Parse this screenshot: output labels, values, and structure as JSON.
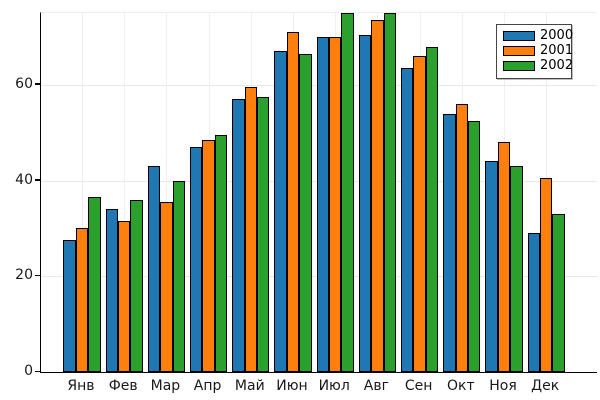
{
  "figure": {
    "background": "#ffffff",
    "axis_color": "#000000",
    "tick_label_color": "#1a1a1a"
  },
  "chart_data": {
    "type": "bar",
    "title": "",
    "xlabel": "",
    "ylabel": "",
    "categories": [
      "Янв",
      "Фев",
      "Мар",
      "Апр",
      "Май",
      "Июн",
      "Июл",
      "Авг",
      "Сен",
      "Окт",
      "Ноя",
      "Дек"
    ],
    "series": [
      {
        "name": "2000",
        "color": "#1f77b4",
        "values": [
          27.5,
          34,
          43,
          47,
          57,
          67,
          70,
          70.5,
          63.5,
          54,
          44,
          29
        ]
      },
      {
        "name": "2001",
        "color": "#ff7f0e",
        "values": [
          30,
          31.5,
          35.5,
          48.5,
          59.5,
          71,
          70,
          73.5,
          66,
          56,
          48,
          40.5
        ]
      },
      {
        "name": "2002",
        "color": "#2ca02c",
        "values": [
          36.5,
          36,
          40,
          49.5,
          57.5,
          66.5,
          75,
          75,
          68,
          52.5,
          43,
          33
        ]
      }
    ],
    "ylim": [
      0,
      75
    ],
    "yticks": [
      0,
      20,
      40,
      60
    ],
    "grid": true,
    "grid_color_h": "#e8e8e8",
    "grid_color_v": "#efefef",
    "bar_outline_color": "#000000",
    "legend_position": "top-right",
    "legend_labels": [
      "2000",
      "2001",
      "2002"
    ]
  }
}
